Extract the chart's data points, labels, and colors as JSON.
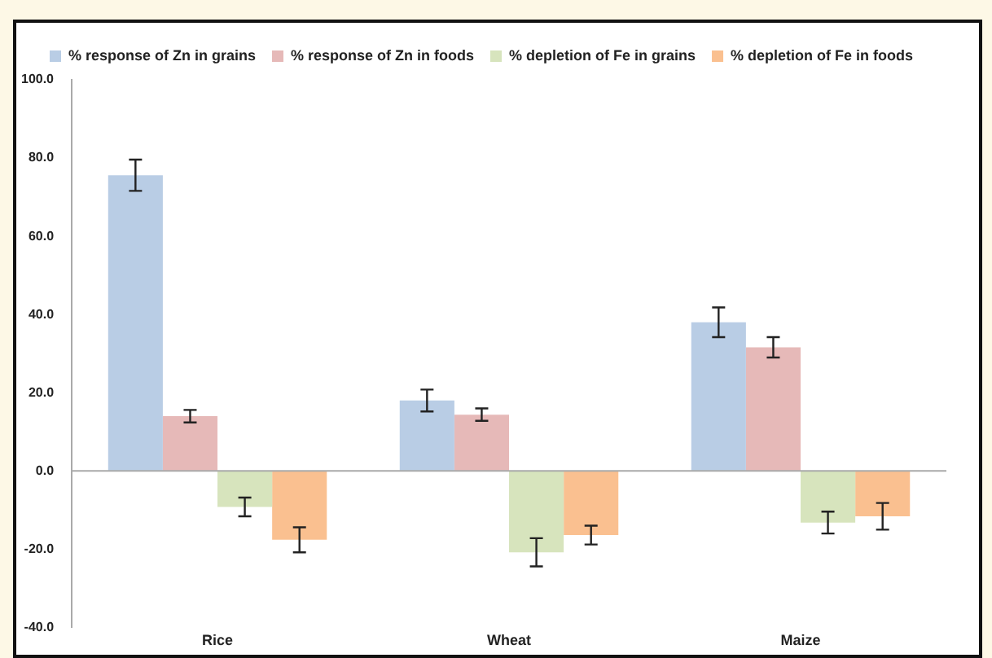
{
  "chart_data": {
    "type": "bar",
    "categories": [
      "Rice",
      "Wheat",
      "Maize"
    ],
    "series": [
      {
        "name": "% response of Zn in grains",
        "color": "#b9cde5",
        "values": [
          75.6,
          18.0,
          38.0
        ],
        "errors": [
          4,
          2.8,
          3.8
        ]
      },
      {
        "name": "% response of Zn in foods",
        "color": "#e6b9b8",
        "values": [
          14.0,
          14.4,
          31.6
        ],
        "errors": [
          1.6,
          1.6,
          2.6
        ]
      },
      {
        "name": "% depletion of Fe in grains",
        "color": "#d7e4bd",
        "values": [
          -9.2,
          -20.8,
          -13.2
        ],
        "errors": [
          2.4,
          3.6,
          2.8
        ]
      },
      {
        "name": "% depletion of Fe in foods",
        "color": "#fac090",
        "values": [
          -17.6,
          -16.4,
          -11.6
        ],
        "errors": [
          3.2,
          2.4,
          3.4
        ]
      }
    ],
    "ylim": [
      -40,
      100
    ],
    "yticks": [
      {
        "value": -40,
        "label": "-40.0"
      },
      {
        "value": -20,
        "label": "-20.0"
      },
      {
        "value": 0,
        "label": "0.0"
      },
      {
        "value": 20,
        "label": "20.0"
      },
      {
        "value": 40,
        "label": "40.0"
      },
      {
        "value": 60,
        "label": "60.0"
      },
      {
        "value": 80,
        "label": "80.0"
      },
      {
        "value": 100,
        "label": "100.0"
      }
    ],
    "grid": false,
    "legend": "top",
    "ref_lines": [
      {
        "axis": "y",
        "value": 0,
        "color": "#aaaaaa"
      }
    ]
  }
}
